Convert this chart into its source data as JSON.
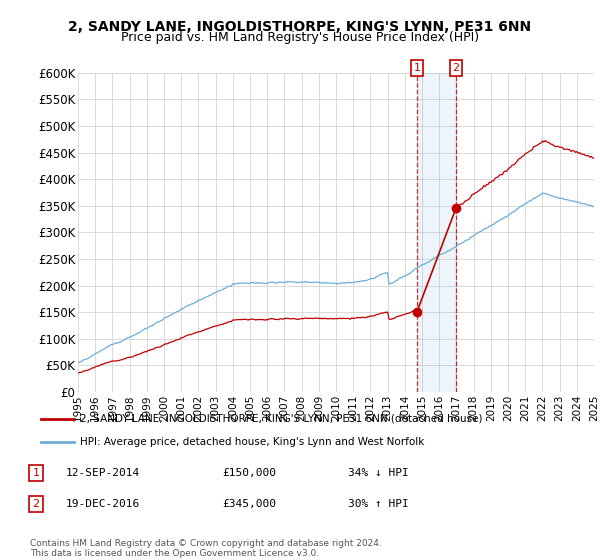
{
  "title": "2, SANDY LANE, INGOLDISTHORPE, KING'S LYNN, PE31 6NN",
  "subtitle": "Price paid vs. HM Land Registry's House Price Index (HPI)",
  "ylabel_ticks": [
    "£0",
    "£50K",
    "£100K",
    "£150K",
    "£200K",
    "£250K",
    "£300K",
    "£350K",
    "£400K",
    "£450K",
    "£500K",
    "£550K",
    "£600K"
  ],
  "ytick_values": [
    0,
    50000,
    100000,
    150000,
    200000,
    250000,
    300000,
    350000,
    400000,
    450000,
    500000,
    550000,
    600000
  ],
  "hpi_color": "#6baed6",
  "price_color": "#c00000",
  "sale1_date": "12-SEP-2014",
  "sale1_price": 150000,
  "sale1_pct": "34% ↓ HPI",
  "sale1_year": 2014.7,
  "sale2_date": "19-DEC-2016",
  "sale2_price": 345000,
  "sale2_pct": "30% ↑ HPI",
  "sale2_year": 2016.97,
  "legend_line1": "2, SANDY LANE, INGOLDISTHORPE, KING'S LYNN, PE31 6NN (detached house)",
  "legend_line2": "HPI: Average price, detached house, King's Lynn and West Norfolk",
  "footnote": "Contains HM Land Registry data © Crown copyright and database right 2024.\nThis data is licensed under the Open Government Licence v3.0.",
  "xmin": 1995,
  "xmax": 2025,
  "ylim_max": 600000
}
